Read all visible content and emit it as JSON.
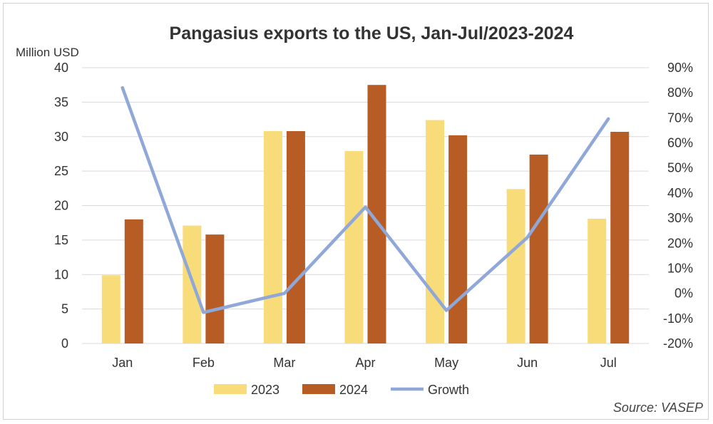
{
  "chart_data": {
    "type": "bar",
    "title": "Pangasius exports to the US, Jan-Jul/2023-2024",
    "ylabel": "Million USD",
    "y2label": "",
    "categories": [
      "Jan",
      "Feb",
      "Mar",
      "Apr",
      "May",
      "Jun",
      "Jul"
    ],
    "ylim": [
      0,
      40
    ],
    "y_ticks": [
      "0",
      "5",
      "10",
      "15",
      "20",
      "25",
      "30",
      "35",
      "40"
    ],
    "y2lim": [
      -20,
      90
    ],
    "y2_ticks": [
      "-20%",
      "-10%",
      "0%",
      "10%",
      "20%",
      "30%",
      "40%",
      "50%",
      "60%",
      "70%",
      "80%",
      "90%"
    ],
    "series": [
      {
        "name": "2023",
        "type": "bar",
        "axis": "left",
        "color": "#f9dc7a",
        "values": [
          9.9,
          17.1,
          30.8,
          27.9,
          32.4,
          22.4,
          18.1
        ]
      },
      {
        "name": "2024",
        "type": "bar",
        "axis": "left",
        "color": "#b85c26",
        "values": [
          18.0,
          15.8,
          30.8,
          37.5,
          30.2,
          27.4,
          30.7
        ]
      },
      {
        "name": "Growth",
        "type": "line",
        "axis": "right",
        "unit": "%",
        "color": "#8fa8d8",
        "values": [
          82.0,
          -7.6,
          0.0,
          34.4,
          -6.8,
          22.3,
          69.6
        ]
      }
    ],
    "legend_position": "bottom",
    "grid": true
  },
  "source": "Source: VASEP"
}
